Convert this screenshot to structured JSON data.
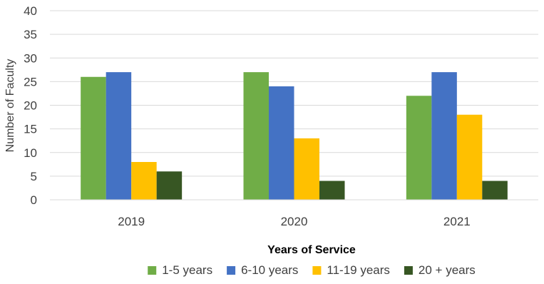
{
  "chart_data": {
    "type": "bar",
    "title": "",
    "xlabel": "Years of Service",
    "ylabel": "Number of Faculty",
    "categories": [
      "2019",
      "2020",
      "2021"
    ],
    "ylim": [
      0,
      40
    ],
    "yticks": [
      0,
      5,
      10,
      15,
      20,
      25,
      30,
      35,
      40
    ],
    "grid": true,
    "legend_position": "bottom",
    "series": [
      {
        "name": "1-5 years",
        "color": "#70AD47",
        "values": [
          26,
          27,
          22
        ]
      },
      {
        "name": "6-10 years",
        "color": "#4472C4",
        "values": [
          27,
          24,
          27
        ]
      },
      {
        "name": "11-19 years",
        "color": "#FFC000",
        "values": [
          8,
          13,
          18
        ]
      },
      {
        "name": "20 + years",
        "color": "#375623",
        "values": [
          6,
          4,
          4
        ]
      }
    ]
  }
}
